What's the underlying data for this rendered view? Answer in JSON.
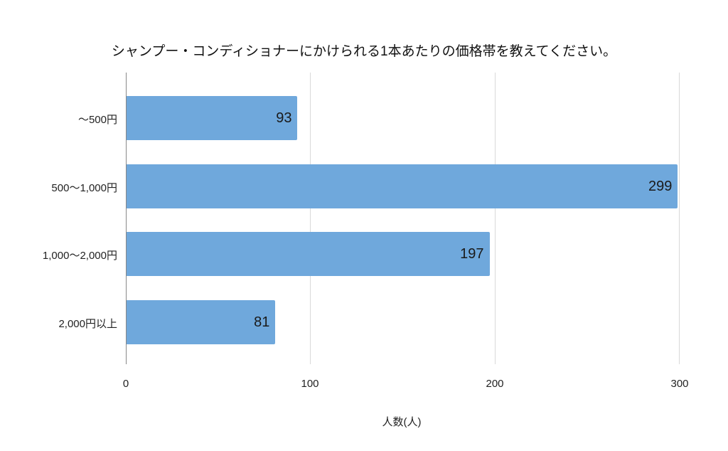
{
  "chart_data": {
    "type": "bar",
    "orientation": "horizontal",
    "title": "シャンプー・コンディショナーにかけられる1本あたりの価格帯を教えてください。",
    "categories": [
      "〜500円",
      "500〜1,000円",
      "1,000〜2,000円",
      "2,000円以上"
    ],
    "values": [
      93,
      299,
      197,
      81
    ],
    "xlabel": "人数(人)",
    "ylabel": "",
    "xlim": [
      0,
      300
    ],
    "xticks": [
      "0",
      "100",
      "200",
      "300"
    ],
    "grid": true,
    "legend": null,
    "bar_color": "#6fa8dc",
    "data_labels": [
      "93",
      "299",
      "197",
      "81"
    ]
  }
}
